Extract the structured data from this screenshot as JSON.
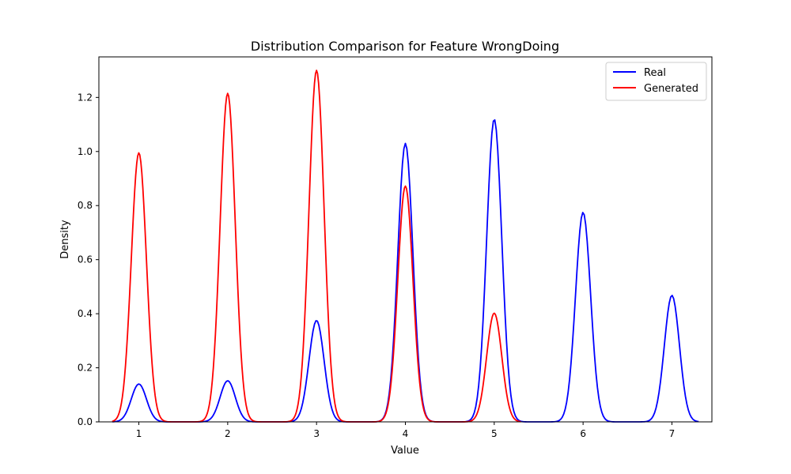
{
  "chart_data": {
    "type": "line",
    "title": "Distribution Comparison for Feature WrongDoing",
    "xlabel": "Value",
    "ylabel": "Density",
    "xlim": [
      0.55,
      7.45
    ],
    "ylim": [
      0,
      1.35
    ],
    "x_ticks": [
      1,
      2,
      3,
      4,
      5,
      6,
      7
    ],
    "y_ticks": [
      0.0,
      0.2,
      0.4,
      0.6,
      0.8,
      1.0,
      1.2
    ],
    "grid": false,
    "legend": "top-right",
    "colors": {
      "Real": "#0000ff",
      "Generated": "#ff0000"
    },
    "series": [
      {
        "name": "Real",
        "color": "#0000ff",
        "x_range": [
          0.7,
          7.3
        ],
        "peaks": [
          {
            "center": 1,
            "height": 0.14
          },
          {
            "center": 2,
            "height": 0.152
          },
          {
            "center": 3,
            "height": 0.375
          },
          {
            "center": 4,
            "height": 1.03
          },
          {
            "center": 5,
            "height": 1.12
          },
          {
            "center": 6,
            "height": 0.775
          },
          {
            "center": 7,
            "height": 0.468
          }
        ],
        "bandwidth": 0.085
      },
      {
        "name": "Generated",
        "color": "#ff0000",
        "x_range": [
          0.7,
          5.3
        ],
        "peaks": [
          {
            "center": 1,
            "height": 0.995
          },
          {
            "center": 2,
            "height": 1.215
          },
          {
            "center": 3,
            "height": 1.3
          },
          {
            "center": 4,
            "height": 0.872
          },
          {
            "center": 5,
            "height": 0.402
          }
        ],
        "bandwidth": 0.085
      }
    ]
  }
}
